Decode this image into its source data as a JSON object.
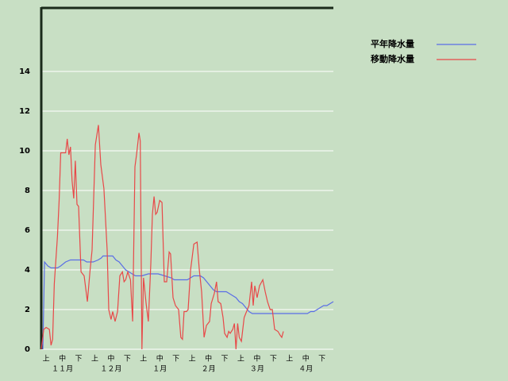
{
  "chart_data": {
    "type": "line",
    "xlim": [
      0,
      180
    ],
    "ylim": [
      0,
      17.2
    ],
    "yticks": [
      0,
      2,
      4,
      6,
      8,
      10,
      12,
      14
    ],
    "grid": true,
    "legend": "top-right",
    "xticks": [
      {
        "value": 3,
        "label": "上"
      },
      {
        "value": 13,
        "label": "中"
      },
      {
        "value": 23,
        "label": "下"
      },
      {
        "value": 33,
        "label": "上"
      },
      {
        "value": 43,
        "label": "中"
      },
      {
        "value": 53,
        "label": "下"
      },
      {
        "value": 63,
        "label": "上"
      },
      {
        "value": 73,
        "label": "中"
      },
      {
        "value": 83,
        "label": "下"
      },
      {
        "value": 93,
        "label": "上"
      },
      {
        "value": 103,
        "label": "中"
      },
      {
        "value": 113,
        "label": "下"
      },
      {
        "value": 123,
        "label": "上"
      },
      {
        "value": 133,
        "label": "中"
      },
      {
        "value": 143,
        "label": "下"
      },
      {
        "value": 153,
        "label": "上"
      },
      {
        "value": 163,
        "label": "中"
      },
      {
        "value": 173,
        "label": "下"
      }
    ],
    "xgroup_ticks": [
      {
        "value": 13,
        "label": "１１月"
      },
      {
        "value": 43,
        "label": "１２月"
      },
      {
        "value": 73,
        "label": "１月"
      },
      {
        "value": 103,
        "label": "２月"
      },
      {
        "value": 133,
        "label": "３月"
      },
      {
        "value": 163,
        "label": "４月"
      }
    ],
    "series": [
      {
        "name": "平年降水量",
        "color": "#5a6ee6",
        "x": [
          1,
          2,
          4,
          6,
          10,
          12,
          15,
          18,
          26,
          28,
          32,
          35,
          37,
          38,
          44,
          46,
          48,
          50,
          52,
          54,
          56,
          58,
          62,
          66,
          72,
          76,
          80,
          82,
          90,
          92,
          94,
          98,
          100,
          102,
          104,
          106,
          108,
          114,
          116,
          118,
          120,
          122,
          124,
          126,
          128,
          130,
          164,
          166,
          168,
          170,
          172,
          174,
          176,
          180
        ],
        "values": [
          0,
          4.4,
          4.2,
          4.1,
          4.1,
          4.2,
          4.4,
          4.5,
          4.5,
          4.4,
          4.4,
          4.5,
          4.6,
          4.7,
          4.7,
          4.5,
          4.4,
          4.2,
          4.0,
          3.9,
          3.8,
          3.7,
          3.7,
          3.8,
          3.8,
          3.7,
          3.6,
          3.5,
          3.5,
          3.6,
          3.7,
          3.7,
          3.6,
          3.4,
          3.2,
          3.0,
          2.9,
          2.9,
          2.8,
          2.7,
          2.6,
          2.4,
          2.3,
          2.1,
          1.9,
          1.8,
          1.8,
          1.9,
          1.9,
          2.0,
          2.1,
          2.2,
          2.2,
          2.4
        ]
      },
      {
        "name": "移動降水量",
        "color": "#e84848",
        "x": [
          0,
          1.5,
          3,
          5,
          6,
          7,
          8,
          10,
          11,
          12,
          15,
          16,
          17,
          18,
          19,
          20,
          21,
          22,
          23,
          24.5,
          26.4,
          28.4,
          30,
          31.3,
          33.3,
          35.2,
          36.7,
          38.6,
          40.6,
          41.6,
          43,
          44,
          45.5,
          47,
          48.4,
          50,
          51,
          52,
          53.3,
          55,
          56.3,
          57.7,
          58.7,
          60.2,
          61,
          62,
          63,
          64.6,
          66,
          67.5,
          68.5,
          69.5,
          70.5,
          71.4,
          73,
          74.4,
          75.8,
          77.3,
          78.8,
          79.7,
          81.2,
          82.7,
          84.6,
          86,
          87,
          88,
          89.5,
          90.5,
          92,
          94,
          96,
          97.4,
          98.8,
          100.3,
          101.8,
          103.7,
          104.7,
          106.6,
          108,
          109,
          110.6,
          112,
          113,
          114.5,
          115.5,
          116.4,
          118,
          119,
          120,
          121,
          122,
          123.3,
          125,
          126,
          128,
          129.6,
          130.6,
          131.6,
          133,
          134.5,
          136.5,
          138,
          139.4,
          141,
          142.4,
          143.8,
          145.8,
          147.3,
          148.2,
          149.2
        ],
        "values": [
          0,
          1.0,
          1.1,
          1.0,
          0.2,
          0.5,
          3.3,
          5.7,
          7.5,
          9.9,
          9.9,
          10.6,
          9.8,
          10.2,
          8.5,
          7.6,
          9.5,
          7.3,
          7.2,
          3.9,
          3.7,
          2.4,
          3.9,
          5.0,
          10.3,
          11.3,
          9.3,
          8.1,
          5.0,
          2.0,
          1.5,
          1.9,
          1.4,
          1.9,
          3.7,
          3.9,
          3.4,
          3.5,
          3.9,
          3.5,
          1.4,
          9.2,
          9.8,
          10.9,
          10.5,
          0,
          3.6,
          2.3,
          1.4,
          4.3,
          6.8,
          7.7,
          6.8,
          6.9,
          7.5,
          7.4,
          3.4,
          3.4,
          4.9,
          4.8,
          2.6,
          2.2,
          2.0,
          0.6,
          0.5,
          1.9,
          1.9,
          2.0,
          4.0,
          5.3,
          5.4,
          4.0,
          2.9,
          0.6,
          1.2,
          1.4,
          2.3,
          2.8,
          3.4,
          2.4,
          2.3,
          1.6,
          0.8,
          0.6,
          0.9,
          0.8,
          1.0,
          1.3,
          0,
          1.3,
          0.6,
          0.4,
          1.6,
          1.8,
          2.2,
          3.4,
          2.2,
          3.2,
          2.6,
          3.2,
          3.5,
          2.9,
          2.4,
          2.0,
          2.0,
          1.0,
          0.9,
          0.7,
          0.6,
          0.9
        ]
      }
    ]
  }
}
